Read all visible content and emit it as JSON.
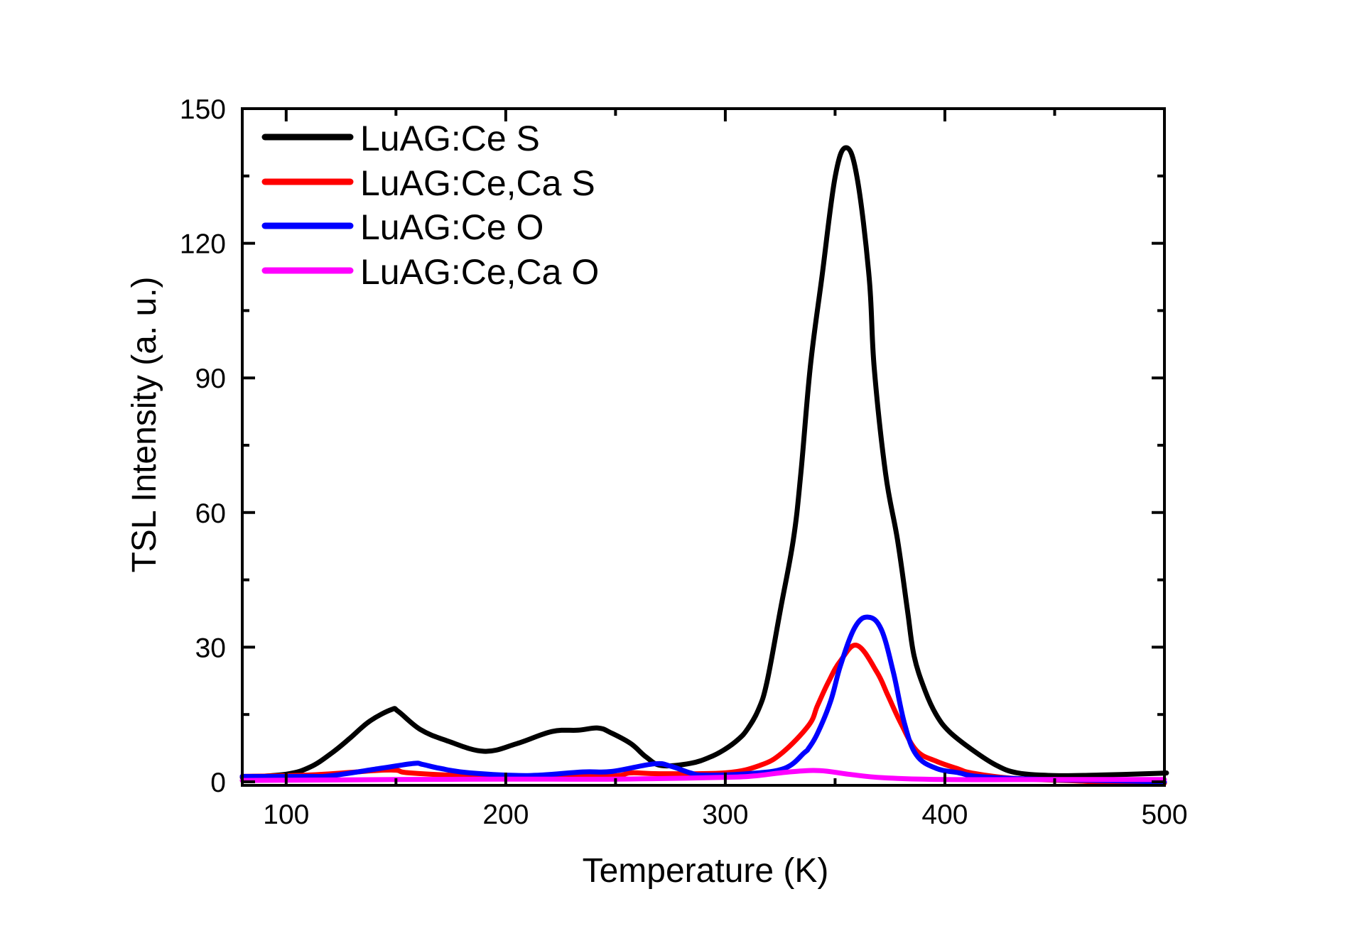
{
  "chart_data": {
    "type": "line",
    "title": "",
    "xlabel": "Temperature (K)",
    "ylabel": "TSL Intensity (a. u.)",
    "xlim": [
      80,
      500
    ],
    "ylim": [
      0,
      150
    ],
    "xticks": [
      "100",
      "200",
      "300",
      "400",
      "500"
    ],
    "xtick_values": [
      100,
      200,
      300,
      400,
      500
    ],
    "xminor_values": [
      150,
      250,
      350,
      450
    ],
    "yticks": [
      "0",
      "30",
      "60",
      "90",
      "120",
      "150"
    ],
    "ytick_values": [
      0,
      30,
      60,
      90,
      120,
      150
    ],
    "yminor_values": [
      15,
      45,
      75,
      105,
      135
    ],
    "grid": false,
    "legend_position": "top-left",
    "series": [
      {
        "name": "LuAG:Ce S",
        "color": "#000000",
        "points": [
          [
            80,
            1.0
          ],
          [
            100,
            1.7
          ],
          [
            111,
            3.3
          ],
          [
            121,
            6.5
          ],
          [
            129,
            9.7
          ],
          [
            138,
            13.5
          ],
          [
            148,
            16.1
          ],
          [
            151,
            15.7
          ],
          [
            161,
            11.7
          ],
          [
            173,
            9.2
          ],
          [
            190,
            6.8
          ],
          [
            205,
            8.5
          ],
          [
            221,
            11.2
          ],
          [
            233,
            11.5
          ],
          [
            242,
            12.0
          ],
          [
            248,
            10.9
          ],
          [
            257,
            8.5
          ],
          [
            264,
            5.5
          ],
          [
            271,
            3.6
          ],
          [
            284,
            4.1
          ],
          [
            293,
            5.5
          ],
          [
            300,
            7.3
          ],
          [
            306,
            9.5
          ],
          [
            310,
            11.7
          ],
          [
            315,
            16.0
          ],
          [
            319,
            22.3
          ],
          [
            325,
            38.1
          ],
          [
            331,
            54.0
          ],
          [
            334.4,
            68.7
          ],
          [
            338.7,
            92.4
          ],
          [
            344,
            112.5
          ],
          [
            350,
            134.7
          ],
          [
            355,
            141.3
          ],
          [
            360,
            134.7
          ],
          [
            365.5,
            112.5
          ],
          [
            367.8,
            92.4
          ],
          [
            373,
            68.7
          ],
          [
            378.4,
            54.0
          ],
          [
            383,
            38.1
          ],
          [
            386,
            28.0
          ],
          [
            391,
            20.3
          ],
          [
            396,
            15.0
          ],
          [
            402,
            11.2
          ],
          [
            412,
            7.3
          ],
          [
            423,
            3.8
          ],
          [
            433,
            2.0
          ],
          [
            450,
            1.4
          ],
          [
            470,
            1.5
          ],
          [
            498,
            1.9
          ],
          [
            500,
            2.0
          ]
        ]
      },
      {
        "name": "LuAG:Ce,Ca S",
        "color": "#ff0000",
        "points": [
          [
            80,
            1.2
          ],
          [
            110,
            1.5
          ],
          [
            132,
            2.2
          ],
          [
            140,
            2.5
          ],
          [
            150,
            2.6
          ],
          [
            156,
            2.0
          ],
          [
            184,
            1.3
          ],
          [
            210,
            1.1
          ],
          [
            248,
            1.3
          ],
          [
            257,
            2.0
          ],
          [
            270,
            1.8
          ],
          [
            300,
            2.0
          ],
          [
            316,
            3.7
          ],
          [
            326,
            6.5
          ],
          [
            338,
            12.6
          ],
          [
            342,
            17.0
          ],
          [
            347,
            22.3
          ],
          [
            352.5,
            27.0
          ],
          [
            360,
            30.4
          ],
          [
            369,
            24.5
          ],
          [
            374,
            19.3
          ],
          [
            380,
            13.0
          ],
          [
            387,
            7.0
          ],
          [
            396,
            4.6
          ],
          [
            406.5,
            2.8
          ],
          [
            412,
            2.0
          ],
          [
            430,
            0.8
          ],
          [
            460,
            0.2
          ],
          [
            480,
            -0.2
          ],
          [
            500,
            -0.3
          ]
        ]
      },
      {
        "name": "LuAG:Ce O",
        "color": "#0000ff",
        "points": [
          [
            80,
            1.2
          ],
          [
            110,
            1.2
          ],
          [
            121,
            1.4
          ],
          [
            143,
            3.0
          ],
          [
            158,
            4.1
          ],
          [
            162,
            3.9
          ],
          [
            170,
            3.0
          ],
          [
            183.5,
            2.0
          ],
          [
            210,
            1.4
          ],
          [
            235,
            2.2
          ],
          [
            248,
            2.3
          ],
          [
            267.5,
            4.0
          ],
          [
            275,
            3.5
          ],
          [
            284,
            2.0
          ],
          [
            290,
            1.5
          ],
          [
            310,
            1.8
          ],
          [
            327,
            3.0
          ],
          [
            336,
            6.5
          ],
          [
            338,
            7.5
          ],
          [
            342,
            10.8
          ],
          [
            348,
            18.0
          ],
          [
            352.5,
            26.0
          ],
          [
            359,
            34.4
          ],
          [
            365,
            36.7
          ],
          [
            371,
            34.0
          ],
          [
            376.5,
            24.5
          ],
          [
            381.6,
            13.0
          ],
          [
            387,
            6.0
          ],
          [
            396,
            3.0
          ],
          [
            406.5,
            2.0
          ],
          [
            415,
            1.2
          ],
          [
            440,
            0.6
          ],
          [
            470,
            0.3
          ],
          [
            500,
            0.0
          ]
        ]
      },
      {
        "name": "LuAG:Ce,Ca O",
        "color": "#ff00ff",
        "points": [
          [
            80,
            0.3
          ],
          [
            150,
            0.5
          ],
          [
            200,
            0.6
          ],
          [
            250,
            0.6
          ],
          [
            300,
            1.0
          ],
          [
            313,
            1.3
          ],
          [
            329,
            2.2
          ],
          [
            343,
            2.5
          ],
          [
            356,
            1.7
          ],
          [
            372,
            0.9
          ],
          [
            400,
            0.5
          ],
          [
            450,
            0.5
          ],
          [
            500,
            0.5
          ]
        ]
      }
    ]
  }
}
